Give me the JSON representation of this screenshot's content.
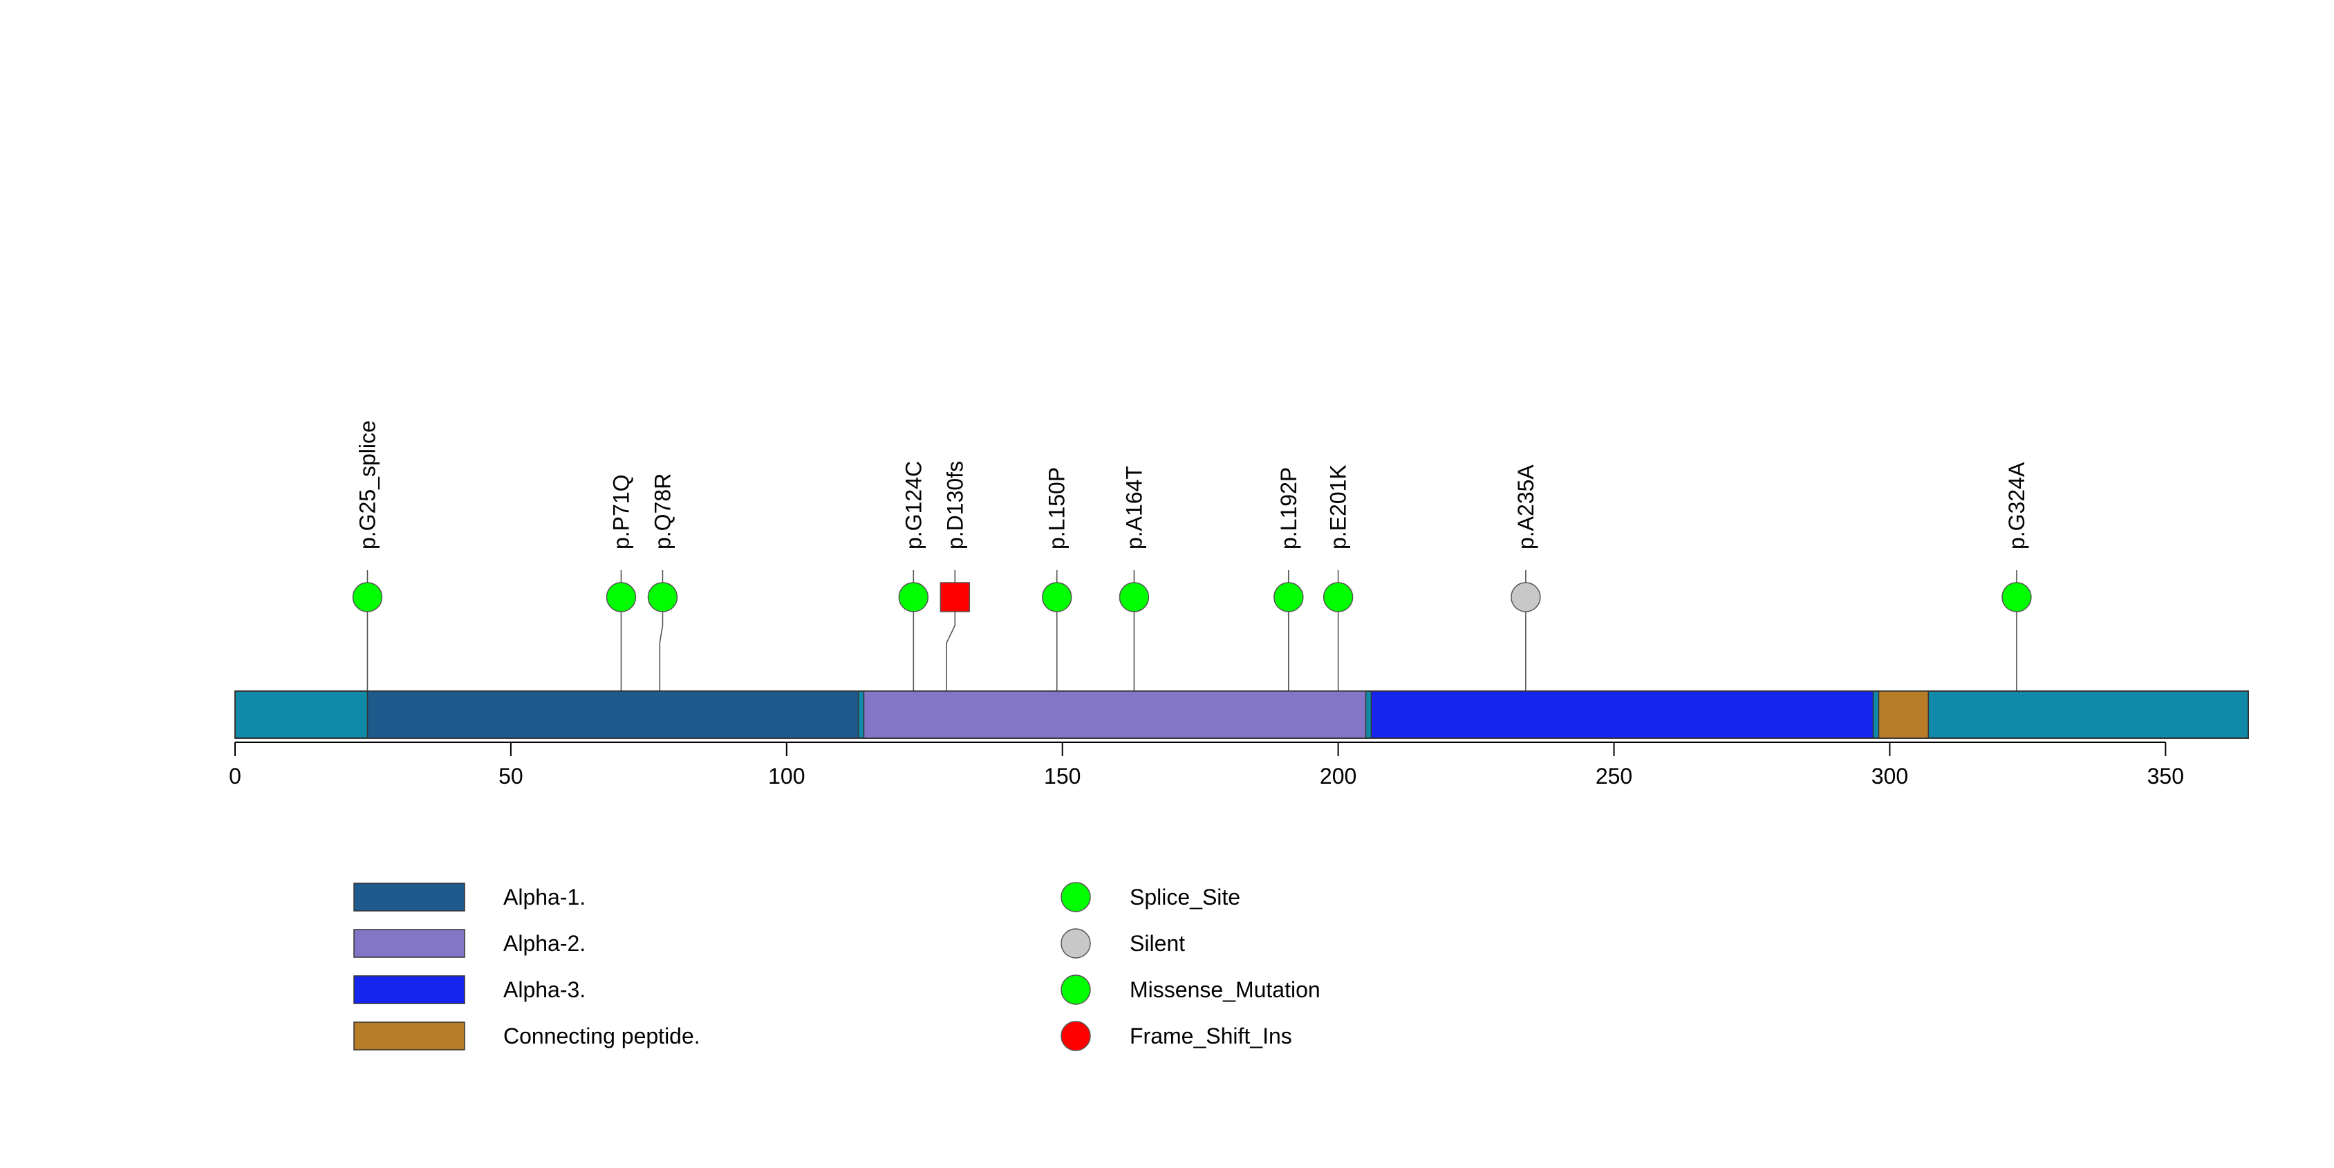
{
  "chart_data": {
    "type": "lollipop",
    "protein_length": 365,
    "axis": {
      "ticks": [
        0,
        50,
        100,
        150,
        200,
        250,
        300,
        350
      ],
      "xlim": [
        0,
        365
      ]
    },
    "backbone_color": "#1189A8",
    "domains": [
      {
        "name": "Alpha-1.",
        "start": 24,
        "end": 113,
        "color": "#1E5A8C"
      },
      {
        "name": "Alpha-2.",
        "start": 114,
        "end": 205,
        "color": "#8476C6"
      },
      {
        "name": "Alpha-3.",
        "start": 206,
        "end": 297,
        "color": "#1625EE"
      },
      {
        "name": "Connecting peptide.",
        "start": 298,
        "end": 307,
        "color": "#B87D27"
      }
    ],
    "mutations": [
      {
        "label": "p.G25_splice",
        "pos": 24,
        "type": "Splice_Site"
      },
      {
        "label": "p.P71Q",
        "pos": 70,
        "type": "Missense_Mutation"
      },
      {
        "label": "p.Q78R",
        "pos": 77,
        "type": "Missense_Mutation"
      },
      {
        "label": "p.G124C",
        "pos": 123,
        "type": "Missense_Mutation"
      },
      {
        "label": "p.D130fs",
        "pos": 129,
        "type": "Frame_Shift_Ins"
      },
      {
        "label": "p.L150P",
        "pos": 149,
        "type": "Missense_Mutation"
      },
      {
        "label": "p.A164T",
        "pos": 163,
        "type": "Missense_Mutation"
      },
      {
        "label": "p.L192P",
        "pos": 191,
        "type": "Missense_Mutation"
      },
      {
        "label": "p.E201K",
        "pos": 200,
        "type": "Missense_Mutation"
      },
      {
        "label": "p.A235A",
        "pos": 234,
        "type": "Silent"
      },
      {
        "label": "p.G324A",
        "pos": 323,
        "type": "Missense_Mutation"
      }
    ],
    "mutation_types": [
      {
        "name": "Splice_Site",
        "color": "#00FF00"
      },
      {
        "name": "Silent",
        "color": "#C8C8C8"
      },
      {
        "name": "Missense_Mutation",
        "color": "#00FF00"
      },
      {
        "name": "Frame_Shift_Ins",
        "color": "#FF0000"
      }
    ]
  }
}
